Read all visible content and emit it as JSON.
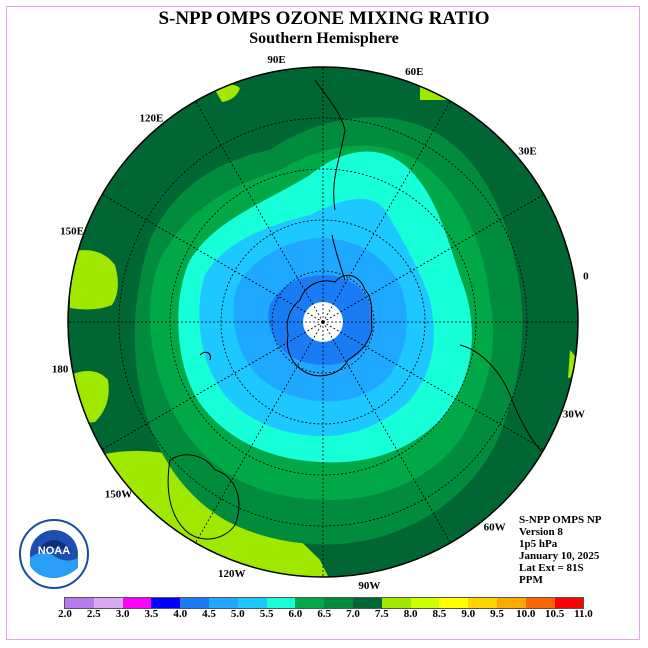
{
  "header": {
    "title": "S-NPP OMPS OZONE MIXING RATIO",
    "subtitle": "Southern Hemisphere"
  },
  "map": {
    "longitude_labels": [
      {
        "text": "0",
        "lon": 0
      },
      {
        "text": "30W",
        "lon": -30
      },
      {
        "text": "60W",
        "lon": -60
      },
      {
        "text": "90W",
        "lon": -90
      },
      {
        "text": "120W",
        "lon": -120
      },
      {
        "text": "150W",
        "lon": -150
      },
      {
        "text": "180",
        "lon": 180
      },
      {
        "text": "150E",
        "lon": 150
      },
      {
        "text": "120E",
        "lon": 120
      },
      {
        "text": "90E",
        "lon": 90
      },
      {
        "text": "60E",
        "lon": 60
      },
      {
        "text": "30E",
        "lon": 30
      }
    ],
    "latitude_extent": "81S",
    "contour_levels_ppm": [
      7.0,
      6.5,
      6.0,
      5.5,
      5.0,
      4.5,
      4.0
    ],
    "ocean_color": "#006633",
    "pole_fill": "#ffffff",
    "coastline_color": "#000000"
  },
  "info": {
    "instrument": "S-NPP OMPS NP",
    "version": "Version 8",
    "pressure": "1p5 hPa",
    "date": "January 10, 2025",
    "lat_ext": "Lat Ext = 81S",
    "units": "PPM"
  },
  "colorbar": {
    "labels": [
      "2.0",
      "2.5",
      "3.0",
      "3.5",
      "4.0",
      "4.5",
      "5.0",
      "5.5",
      "6.0",
      "6.5",
      "7.0",
      "7.5",
      "8.0",
      "8.5",
      "9.0",
      "9.5",
      "10.0",
      "10.5",
      "11.0"
    ],
    "colors": [
      "#b57cf0",
      "#d8a8f0",
      "#ff00ff",
      "#0000ff",
      "#1a7cf5",
      "#1ea8ff",
      "#1cc8ff",
      "#17ffd8",
      "#00a848",
      "#008c3c",
      "#006633",
      "#a0e800",
      "#ccff00",
      "#ffff00",
      "#ffd500",
      "#ffaa00",
      "#ff6600",
      "#ff0000",
      "#8b5a3c"
    ]
  },
  "logo": {
    "name": "noaa-logo",
    "text": "NOAA"
  }
}
